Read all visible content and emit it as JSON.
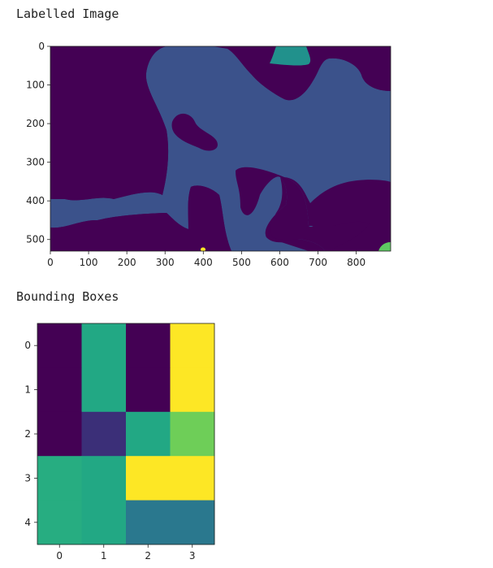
{
  "labels": {
    "chart1_title": "Labelled Image",
    "chart2_title": "Bounding Boxes"
  },
  "chart_data": [
    {
      "type": "heatmap",
      "title": "Labelled Image",
      "colormap": "viridis",
      "xlim": [
        0,
        890
      ],
      "ylim": [
        530,
        0
      ],
      "xticks": [
        0,
        100,
        200,
        300,
        400,
        500,
        600,
        700,
        800
      ],
      "yticks": [
        0,
        100,
        200,
        300,
        400,
        500
      ],
      "regions": {
        "background": "#440154",
        "main": "#3b528b",
        "top_blob": "#21918c",
        "bottom_right_blob": "#5ec962",
        "small_blob": "#fde725"
      }
    },
    {
      "type": "heatmap",
      "title": "Bounding Boxes",
      "colormap": "viridis",
      "xticks": [
        0,
        1,
        2,
        3
      ],
      "yticks": [
        0,
        1,
        2,
        3,
        4
      ],
      "values": [
        [
          0.0,
          0.55,
          0.0,
          1.0
        ],
        [
          0.0,
          0.55,
          0.0,
          1.0
        ],
        [
          0.0,
          0.15,
          0.55,
          0.72
        ],
        [
          0.6,
          0.55,
          1.0,
          1.0
        ],
        [
          0.6,
          0.55,
          0.45,
          0.45
        ]
      ],
      "colors": [
        [
          "#440154",
          "#22a884",
          "#440154",
          "#fde725"
        ],
        [
          "#440154",
          "#22a884",
          "#440154",
          "#fde725"
        ],
        [
          "#440154",
          "#3b2f78",
          "#22a884",
          "#6ece58"
        ],
        [
          "#27ad81",
          "#22a884",
          "#fde725",
          "#fde725"
        ],
        [
          "#27ad81",
          "#22a884",
          "#2a788e",
          "#2a788e"
        ]
      ]
    }
  ]
}
